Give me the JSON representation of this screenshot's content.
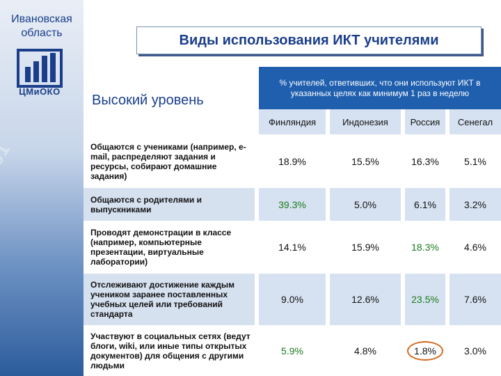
{
  "sidebar": {
    "region": "Ивановская область",
    "logo_text": "ЦМиОКО"
  },
  "title": "Виды использования ИКТ учителями",
  "level": "Высокий уровень",
  "table": {
    "header": "% учителей, ответивших, что они используют ИКТ в указанных целях как минимум 1 раз в неделю",
    "countries": [
      "Финляндия",
      "Индонезия",
      "Россия",
      "Сенегал"
    ],
    "rows": [
      {
        "label": "Общаются с учениками (например, e-mail, распределяют задания и ресурсы, собирают домашние задания)",
        "values": [
          "18.9%",
          "15.5%",
          "16.3%",
          "5.1%"
        ]
      },
      {
        "label": "Общаются с родителями и выпускниками",
        "values": [
          "39.3%",
          "5.0%",
          "6.1%",
          "3.2%"
        ]
      },
      {
        "label": "Проводят демонстрации в классе (например, компьютерные презентации, виртуальные лаборатории)",
        "values": [
          "14.1%",
          "15.9%",
          "18.3%",
          "4.6%"
        ]
      },
      {
        "label": "Отслеживают достижение каждым учеником заранее поставленных учебных целей или требований стандарта",
        "values": [
          "9.0%",
          "12.6%",
          "23.5%",
          "7.6%"
        ]
      },
      {
        "label": "Участвуют в социальных сетях (ведут блоги, wiki, или иные типы открытых документов) для общения с другими людьми",
        "values": [
          "5.9%",
          "4.8%",
          "1.8%",
          "3.0%"
        ]
      }
    ]
  },
  "colors": {
    "accent": "#1f5fae",
    "highlight": "#1a7a1a",
    "circle": "#d2691e"
  }
}
